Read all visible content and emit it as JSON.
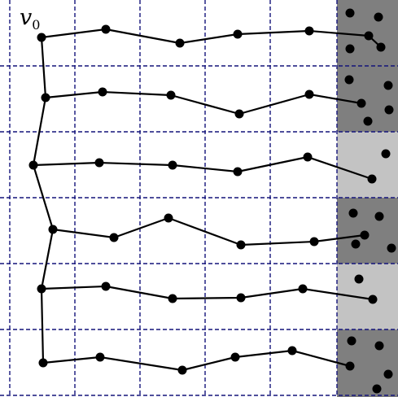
{
  "labels": {
    "root": "v",
    "root_subscript": "0"
  },
  "colors": {
    "background": "#ffffff",
    "grid": "#14147a",
    "dark_cell": "#7f7f7f",
    "light_cell": "#c3c3c3",
    "edge": "#000000",
    "node": "#000000"
  }
}
